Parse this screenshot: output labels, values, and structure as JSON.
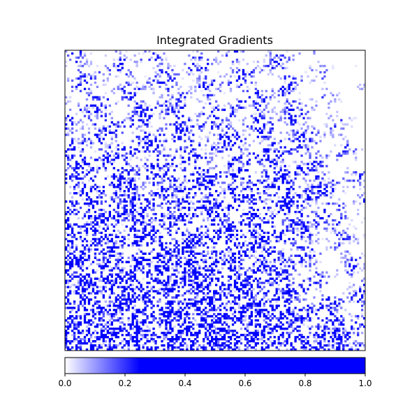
{
  "chart_data": {
    "type": "heatmap",
    "title": "Integrated Gradients",
    "xlabel": "",
    "ylabel": "",
    "axis_ticks_visible": false,
    "colormap": {
      "name": "white-to-blue",
      "stops": [
        {
          "value": 0.0,
          "color": "#ffffff"
        },
        {
          "value": 0.25,
          "color": "#0000ff"
        },
        {
          "value": 1.0,
          "color": "#0000ff"
        }
      ]
    },
    "value_range": [
      0,
      1
    ],
    "colorbar": {
      "orientation": "horizontal",
      "position": "bottom",
      "ticks": [
        "0.0",
        "0.2",
        "0.4",
        "0.6",
        "0.8",
        "1.0"
      ]
    }
  }
}
